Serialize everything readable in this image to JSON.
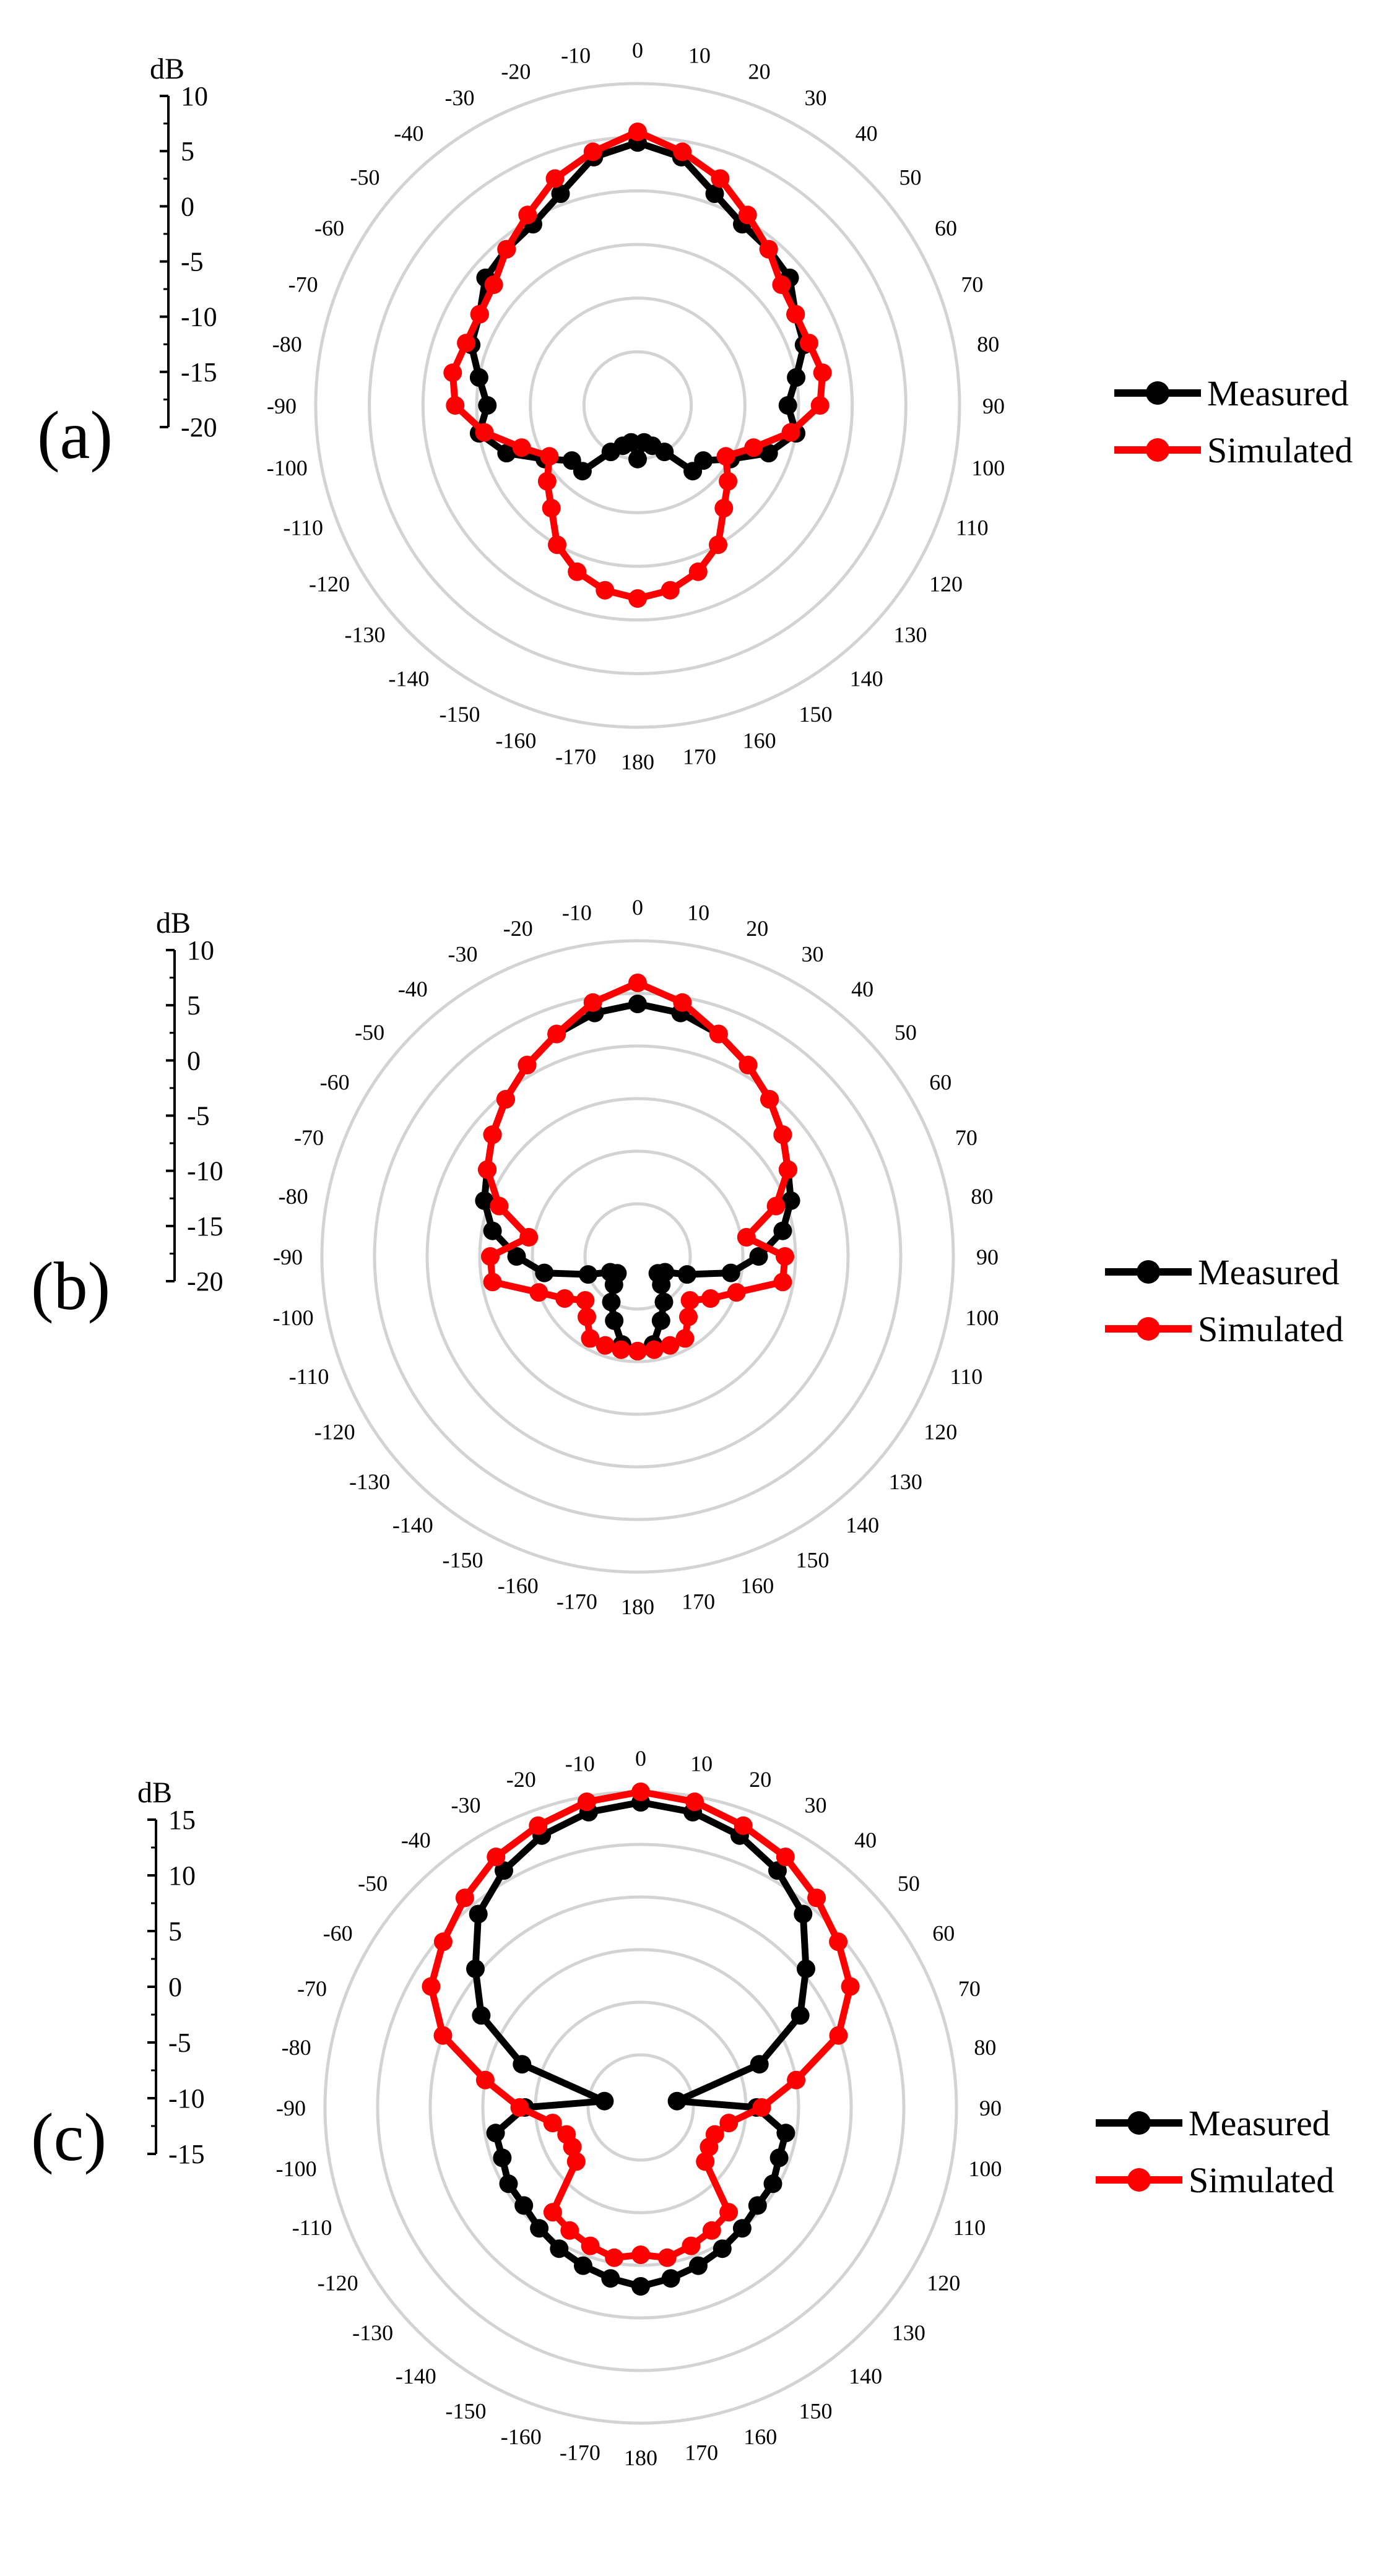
{
  "colors": {
    "measured": "#000000",
    "simulated": "#ff0000",
    "grid": "#d3d3d3",
    "axis": "#000000"
  },
  "chart_data": [
    {
      "type": "polar-line",
      "panel_label": "(a)",
      "unit": "dB",
      "radial_ticks": [
        "10",
        "5",
        "0",
        "-5",
        "-10",
        "-15",
        "-20"
      ],
      "rlim": [
        -20,
        10
      ],
      "angle_unit": "deg",
      "grid": true,
      "legend_position": "right",
      "legend": [
        "Measured",
        "Simulated"
      ],
      "series": [
        {
          "name": "Measured",
          "angles": [
            0,
            10,
            20,
            30,
            40,
            50,
            60,
            70,
            80,
            90,
            100,
            110,
            120,
            130,
            140,
            150,
            160,
            170,
            180,
            -170,
            -160,
            -150,
            -140,
            -130,
            -120,
            -110,
            -100,
            -90,
            -80,
            -70,
            -60,
            -50,
            -40,
            -30,
            -20,
            -10
          ],
          "values": [
            4.5,
            3.5,
            1.0,
            -0.5,
            -1.0,
            -1.5,
            -3.0,
            -3.5,
            -5.0,
            -6.0,
            -5.0,
            -7.0,
            -10.0,
            -12.0,
            -12.0,
            -15.0,
            -16.0,
            -16.5,
            -15.0,
            -16.5,
            -16.0,
            -15.0,
            -12.0,
            -12.0,
            -10.0,
            -7.0,
            -5.0,
            -6.0,
            -5.0,
            -3.5,
            -3.0,
            -1.5,
            -1.0,
            -0.5,
            1.0,
            3.5
          ]
        },
        {
          "name": "Simulated",
          "angles": [
            0,
            10,
            20,
            30,
            40,
            50,
            60,
            70,
            80,
            90,
            100,
            110,
            120,
            130,
            140,
            150,
            160,
            170,
            180,
            -170,
            -160,
            -150,
            -140,
            -130,
            -120,
            -110,
            -100,
            -90,
            -80,
            -70,
            -60,
            -50,
            -40,
            -30,
            -20,
            -10
          ],
          "values": [
            5.5,
            4.0,
            2.5,
            0.5,
            -1.0,
            -2.5,
            -3.0,
            -3.0,
            -2.5,
            -3.0,
            -5.5,
            -8.5,
            -10.5,
            -9.0,
            -7.5,
            -5.0,
            -3.5,
            -2.5,
            -2.0,
            -2.5,
            -3.5,
            -5.0,
            -7.5,
            -9.0,
            -10.5,
            -8.5,
            -5.5,
            -3.0,
            -2.5,
            -3.0,
            -3.0,
            -2.5,
            -1.0,
            0.5,
            2.5,
            4.0
          ]
        }
      ]
    },
    {
      "type": "polar-line",
      "panel_label": "(b)",
      "unit": "dB",
      "radial_ticks": [
        "10",
        "5",
        "0",
        "-5",
        "-10",
        "-15",
        "-20"
      ],
      "rlim": [
        -20,
        10
      ],
      "angle_unit": "deg",
      "grid": true,
      "legend_position": "right",
      "legend": [
        "Measured",
        "Simulated"
      ],
      "series": [
        {
          "name": "Measured",
          "angles": [
            0,
            10,
            20,
            30,
            40,
            50,
            60,
            70,
            80,
            90,
            100,
            110,
            120,
            130,
            140,
            150,
            160,
            170,
            180,
            -170,
            -160,
            -150,
            -140,
            -130,
            -120,
            -110,
            -100,
            -90,
            -80,
            -70,
            -60,
            -50,
            -40,
            -30,
            -20,
            -10
          ],
          "values": [
            4.0,
            3.5,
            2.5,
            1.0,
            -0.5,
            -2.0,
            -3.5,
            -4.5,
            -6.0,
            -8.5,
            -11.0,
            -15.0,
            -17.0,
            -17.5,
            -16.5,
            -15.0,
            -13.5,
            -11.5,
            -11.0,
            -11.5,
            -13.5,
            -15.0,
            -16.5,
            -17.5,
            -17.0,
            -15.0,
            -11.0,
            -8.5,
            -6.0,
            -4.5,
            -3.5,
            -2.0,
            -0.5,
            1.0,
            2.5,
            3.5
          ]
        },
        {
          "name": "Simulated",
          "angles": [
            0,
            10,
            20,
            30,
            40,
            50,
            60,
            70,
            80,
            90,
            100,
            110,
            120,
            130,
            140,
            150,
            160,
            170,
            180,
            -170,
            -160,
            -150,
            -140,
            -130,
            -120,
            -110,
            -100,
            -90,
            -80,
            -70,
            -60,
            -50,
            -40,
            -30,
            -20,
            -10
          ],
          "values": [
            6.0,
            4.5,
            2.5,
            1.0,
            -0.5,
            -2.0,
            -3.5,
            -6.0,
            -9.5,
            -6.0,
            -6.0,
            -10.0,
            -12.0,
            -13.5,
            -12.5,
            -11.0,
            -11.0,
            -11.0,
            -11.0,
            -11.0,
            -11.0,
            -11.0,
            -12.5,
            -13.5,
            -12.0,
            -10.0,
            -6.0,
            -6.0,
            -9.5,
            -6.0,
            -3.5,
            -2.0,
            -0.5,
            1.0,
            2.5,
            4.5
          ]
        }
      ]
    },
    {
      "type": "polar-line",
      "panel_label": "(c)",
      "unit": "dB",
      "radial_ticks": [
        "15",
        "10",
        "5",
        "0",
        "-5",
        "-10",
        "-15"
      ],
      "rlim": [
        -15,
        15
      ],
      "angle_unit": "deg",
      "grid": true,
      "legend_position": "right",
      "legend": [
        "Measured",
        "Simulated"
      ],
      "series": [
        {
          "name": "Measured",
          "angles": [
            0,
            10,
            20,
            30,
            40,
            50,
            60,
            70,
            80,
            90,
            100,
            110,
            120,
            130,
            140,
            150,
            160,
            170,
            180,
            -170,
            -160,
            -150,
            -140,
            -130,
            -120,
            -110,
            -100,
            -90,
            -80,
            -70,
            -60,
            -50,
            -40,
            -30,
            -20,
            -10
          ],
          "values": [
            14.0,
            13.5,
            12.5,
            11.0,
            9.0,
            5.5,
            2.5,
            -3.0,
            -11.5,
            -4.0,
            -1.0,
            -1.0,
            -0.5,
            -0.5,
            0.0,
            0.5,
            1.0,
            1.5,
            2.0,
            1.5,
            1.0,
            0.5,
            0.0,
            -0.5,
            -0.5,
            -1.0,
            -1.0,
            -4.0,
            -11.5,
            -3.0,
            2.5,
            5.5,
            9.0,
            11.0,
            12.5,
            13.5
          ]
        },
        {
          "name": "Simulated",
          "angles": [
            0,
            10,
            20,
            30,
            40,
            50,
            60,
            70,
            80,
            90,
            100,
            110,
            120,
            130,
            140,
            150,
            160,
            170,
            180,
            -170,
            -160,
            -150,
            -140,
            -130,
            -120,
            -110,
            -100,
            -90,
            -80,
            -70,
            -60,
            -50,
            -40,
            -30,
            -20,
            -10
          ],
          "values": [
            15.0,
            14.5,
            13.5,
            12.5,
            11.0,
            9.5,
            8.0,
            5.0,
            0.0,
            -3.5,
            -6.5,
            -7.5,
            -7.5,
            -7.0,
            -2.0,
            -1.5,
            -1.0,
            -0.5,
            -1.0,
            -0.5,
            -1.0,
            -1.5,
            -2.0,
            -7.0,
            -7.5,
            -7.5,
            -6.5,
            -3.5,
            0.0,
            5.0,
            8.0,
            9.5,
            11.0,
            12.5,
            13.5,
            14.5
          ]
        }
      ]
    }
  ]
}
